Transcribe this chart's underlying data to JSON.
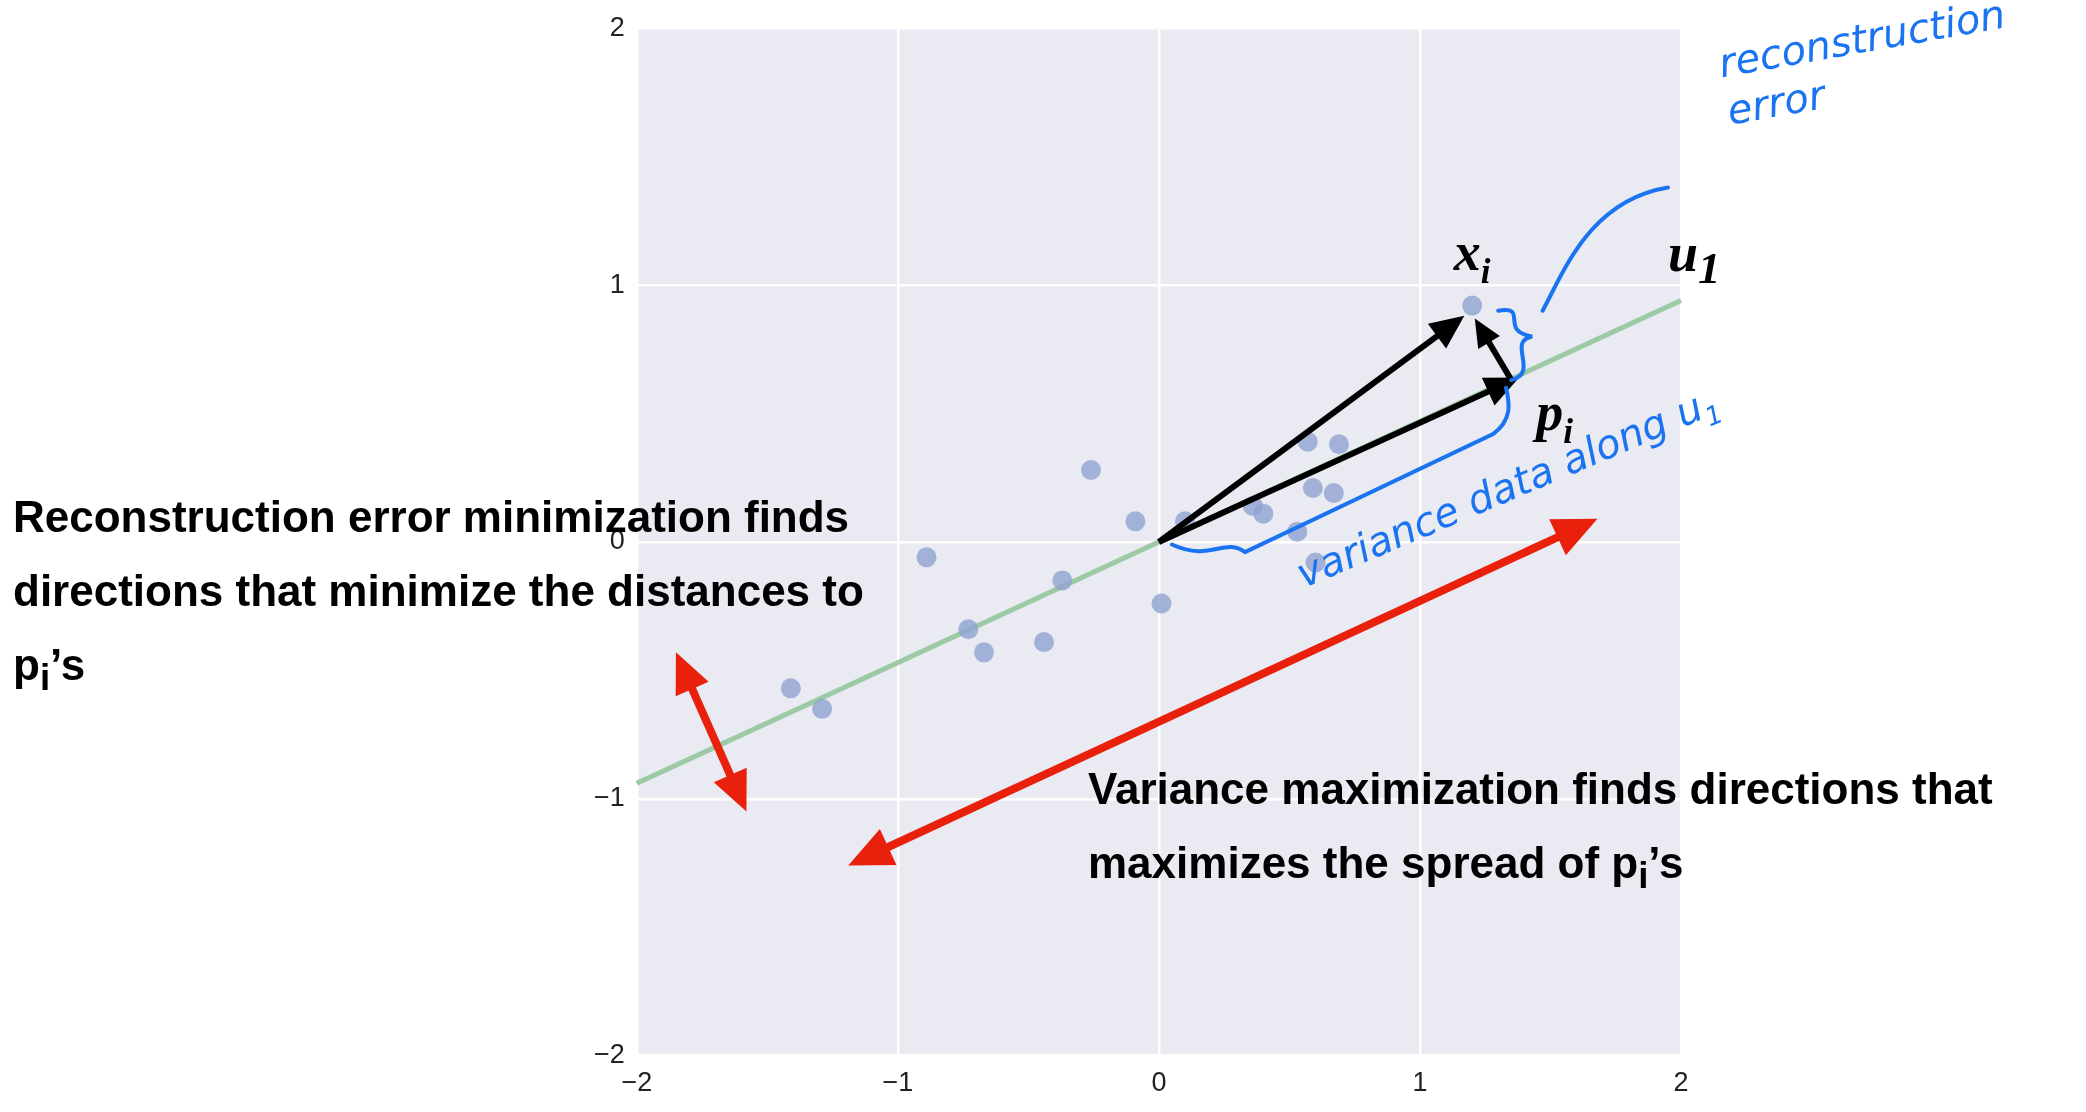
{
  "chart_data": {
    "type": "scatter",
    "xlim": [
      -2,
      2
    ],
    "ylim": [
      -2,
      2
    ],
    "xticks": [
      {
        "value": -2,
        "label": "−2"
      },
      {
        "value": -1,
        "label": "−1"
      },
      0,
      1,
      2
    ],
    "yticks": [
      {
        "value": -2,
        "label": "−2"
      },
      {
        "value": -1,
        "label": "−1"
      },
      0,
      1,
      2
    ],
    "grid": true,
    "marker": "circle",
    "series": [
      {
        "color": "#8fa3d1",
        "x": [
          1.2,
          0.69,
          0.57,
          0.59,
          0.67,
          0.36,
          0.4,
          0.53,
          0.6,
          0.1,
          -0.09,
          -0.26,
          0.01,
          -0.89,
          -0.37,
          -0.73,
          -0.67,
          -0.44,
          -1.41,
          -1.29
        ],
        "values": [
          0.92,
          0.38,
          0.39,
          0.21,
          0.19,
          0.14,
          0.11,
          0.04,
          -0.08,
          0.08,
          0.08,
          0.28,
          -0.24,
          -0.06,
          -0.15,
          -0.34,
          -0.43,
          -0.39,
          -0.57,
          -0.65
        ]
      },
      {
        "type": "line",
        "name": "u$_{1}$",
        "color": "#9ccaa5",
        "marker": "none",
        "x": [
          -2,
          2
        ],
        "values": [
          -0.94,
          0.94
        ]
      }
    ],
    "annotations": [
      {
        "text": "x$_{i}$",
        "x": 1.2,
        "y": 0.92
      },
      {
        "text": "p$_{i}$",
        "x": 1.37,
        "y": 0.64
      },
      "reconstruction error",
      {
        "text": "variance data along u$_{1}$",
        "x": 0.68,
        "y": 0.32
      },
      "Reconstruction error minimization finds directions that minimize the distances to p$_{i}$’s",
      "Variance maximization finds directions that maximizes the spread of p$_{i}$’s"
    ]
  }
}
